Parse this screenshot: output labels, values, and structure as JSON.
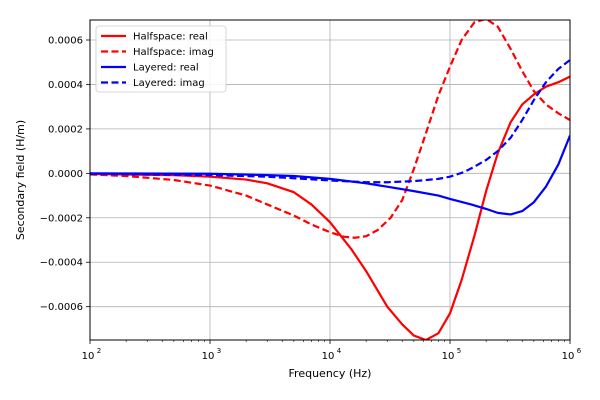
{
  "chart_data": {
    "type": "line",
    "title": "",
    "xlabel": "Frequency (Hz)",
    "ylabel": "Secondary field (H/m)",
    "x_scale": "log",
    "xlim": [
      100,
      1000000
    ],
    "ylim": [
      -0.00075,
      0.00069
    ],
    "grid": true,
    "legend_position": "top-left",
    "x_ticks": [
      {
        "value": 100,
        "base": "10",
        "exp": "2"
      },
      {
        "value": 1000,
        "base": "10",
        "exp": "3"
      },
      {
        "value": 10000,
        "base": "10",
        "exp": "4"
      },
      {
        "value": 100000,
        "base": "10",
        "exp": "5"
      },
      {
        "value": 1000000,
        "base": "10",
        "exp": "6"
      }
    ],
    "y_ticks": [
      {
        "value": -0.0006,
        "label": "−0.0006"
      },
      {
        "value": -0.0004,
        "label": "−0.0004"
      },
      {
        "value": -0.0002,
        "label": "−0.0002"
      },
      {
        "value": 0,
        "label": "0.0000"
      },
      {
        "value": 0.0002,
        "label": "0.0002"
      },
      {
        "value": 0.0004,
        "label": "0.0004"
      },
      {
        "value": 0.0006,
        "label": "0.0006"
      }
    ],
    "series": [
      {
        "name": "Halfspace: real",
        "color": "#ff0000",
        "style": "solid",
        "x": [
          100,
          500,
          1000,
          2000,
          3000,
          5000,
          7000,
          10000,
          15000,
          20000,
          30000,
          40000,
          50000,
          63000,
          80000,
          100000,
          125000,
          160000,
          200000,
          250000,
          320000,
          400000,
          500000,
          630000,
          800000,
          1000000
        ],
        "y": [
          -3e-06,
          -8e-06,
          -1.5e-05,
          -2.8e-05,
          -4.5e-05,
          -8.5e-05,
          -0.00014,
          -0.00022,
          -0.00034,
          -0.00044,
          -0.0006,
          -0.00068,
          -0.00073,
          -0.00075,
          -0.00072,
          -0.00063,
          -0.00048,
          -0.00028,
          -8e-05,
          9e-05,
          0.00023,
          0.00031,
          0.000355,
          0.00039,
          0.00041,
          0.000435
        ]
      },
      {
        "name": "Halfspace: imag",
        "color": "#ff0000",
        "style": "dashed",
        "x": [
          100,
          200,
          500,
          1000,
          2000,
          3000,
          5000,
          7000,
          10000,
          13000,
          16000,
          20000,
          25000,
          32000,
          40000,
          50000,
          63000,
          80000,
          100000,
          125000,
          160000,
          200000,
          250000,
          320000,
          400000,
          500000,
          630000,
          800000,
          1000000
        ],
        "y": [
          -5e-06,
          -1.2e-05,
          -3e-05,
          -5.5e-05,
          -0.0001,
          -0.00014,
          -0.00019,
          -0.00023,
          -0.000265,
          -0.000285,
          -0.00029,
          -0.000283,
          -0.000255,
          -0.0002,
          -0.00012,
          2e-05,
          0.00018,
          0.00035,
          0.00048,
          0.0006,
          0.00068,
          0.000695,
          0.00066,
          0.00056,
          0.00046,
          0.00037,
          0.00031,
          0.00027,
          0.00024
        ]
      },
      {
        "name": "Layered: real",
        "color": "#0000ff",
        "style": "solid",
        "x": [
          100,
          1000,
          3000,
          5000,
          10000,
          20000,
          30000,
          50000,
          80000,
          100000,
          150000,
          200000,
          250000,
          320000,
          400000,
          500000,
          630000,
          800000,
          1000000
        ],
        "y": [
          0,
          -2e-06,
          -8e-06,
          -1.2e-05,
          -2.5e-05,
          -4.5e-05,
          -6e-05,
          -8e-05,
          -0.0001,
          -0.000115,
          -0.00014,
          -0.00016,
          -0.000178,
          -0.000185,
          -0.00017,
          -0.00013,
          -6e-05,
          4e-05,
          0.00017
        ]
      },
      {
        "name": "Layered: imag",
        "color": "#0000ff",
        "style": "dashed",
        "x": [
          100,
          1000,
          3000,
          5000,
          10000,
          20000,
          30000,
          50000,
          80000,
          100000,
          130000,
          160000,
          200000,
          250000,
          320000,
          400000,
          500000,
          630000,
          800000,
          1000000
        ],
        "y": [
          -2e-06,
          -8e-06,
          -1.5e-05,
          -2.2e-05,
          -3.2e-05,
          -4e-05,
          -4e-05,
          -3.5e-05,
          -2.5e-05,
          -1.5e-05,
          5e-06,
          3e-05,
          6e-05,
          0.0001,
          0.00016,
          0.00024,
          0.00033,
          0.00041,
          0.00047,
          0.00051
        ]
      }
    ]
  }
}
